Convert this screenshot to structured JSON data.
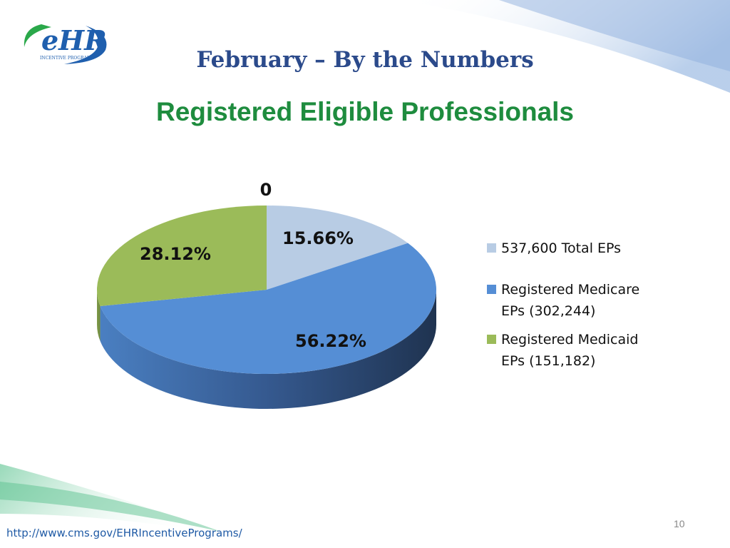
{
  "header": {
    "title": "February – By the Numbers",
    "subtitle": "Registered Eligible Professionals"
  },
  "logo": {
    "text": "eHR",
    "tagline": "INCENTIVE PROGRAM"
  },
  "footer": {
    "url": "http://www.cms.gov/EHRIncentivePrograms/",
    "page_number": "10"
  },
  "chart_data": {
    "type": "pie",
    "style": "3d",
    "title": "Registered Eligible Professionals",
    "top_label": "0",
    "categories": [
      "537,600 Total EPs",
      "Registered Medicare EPs (302,244)",
      "Registered Medicaid EPs (151,182)"
    ],
    "values": [
      15.66,
      56.22,
      28.12
    ],
    "data_labels": [
      "15.66%",
      "56.22%",
      "28.12%"
    ],
    "colors": [
      "#b8cce4",
      "#558ed5",
      "#9bbb59"
    ],
    "legend_position": "right"
  }
}
